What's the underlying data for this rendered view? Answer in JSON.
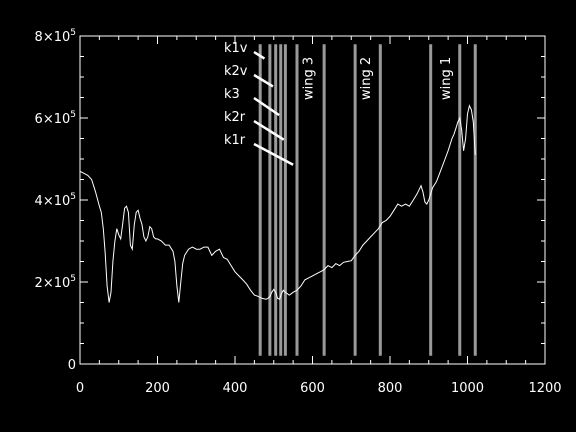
{
  "chart_data": {
    "type": "line",
    "title": "",
    "xlabel": "",
    "ylabel": "",
    "xlim": [
      0,
      1200
    ],
    "ylim": [
      0,
      800000
    ],
    "grid": false,
    "colors": {
      "background": "#000000",
      "axes": "#ffffff",
      "spectrum": "#ffffff",
      "bands": "#9a9a9a"
    },
    "x_ticks": [
      {
        "value": 0,
        "label": "0"
      },
      {
        "value": 200,
        "label": "200"
      },
      {
        "value": 400,
        "label": "400"
      },
      {
        "value": 600,
        "label": "600"
      },
      {
        "value": 800,
        "label": "800"
      },
      {
        "value": 1000,
        "label": "1000"
      },
      {
        "value": 1200,
        "label": "1200"
      }
    ],
    "y_ticks": [
      {
        "value": 0,
        "mantissa": "0",
        "exponent": ""
      },
      {
        "value": 200000,
        "mantissa": "2×10",
        "exponent": "5"
      },
      {
        "value": 400000,
        "mantissa": "4×10",
        "exponent": "5"
      },
      {
        "value": 600000,
        "mantissa": "6×10",
        "exponent": "5"
      },
      {
        "value": 800000,
        "mantissa": "8×10",
        "exponent": "5"
      }
    ],
    "series": [
      {
        "x": [
          0,
          10,
          20,
          30,
          40,
          50,
          55,
          60,
          65,
          70,
          75,
          80,
          85,
          90,
          95,
          100,
          105,
          110,
          115,
          120,
          125,
          130,
          135,
          140,
          145,
          150,
          155,
          160,
          165,
          170,
          175,
          180,
          185,
          190,
          195,
          200,
          210,
          220,
          230,
          240,
          245,
          250,
          255,
          260,
          265,
          270,
          280,
          290,
          300,
          310,
          320,
          330,
          340,
          350,
          360,
          370,
          380,
          390,
          400,
          410,
          420,
          430,
          440,
          450,
          460,
          470,
          480,
          485,
          490,
          495,
          500,
          505,
          510,
          515,
          520,
          525,
          530,
          540,
          550,
          560,
          570,
          580,
          590,
          600,
          610,
          620,
          630,
          640,
          650,
          660,
          670,
          680,
          690,
          700,
          710,
          720,
          730,
          740,
          750,
          760,
          770,
          780,
          790,
          800,
          810,
          820,
          830,
          840,
          850,
          860,
          870,
          880,
          885,
          890,
          895,
          900,
          910,
          920,
          930,
          940,
          950,
          960,
          965,
          970,
          975,
          980,
          985,
          990,
          995,
          1000,
          1005,
          1010,
          1015,
          1020
        ],
        "y": [
          470000,
          465000,
          460000,
          450000,
          420000,
          385000,
          370000,
          330000,
          270000,
          190000,
          150000,
          175000,
          250000,
          300000,
          330000,
          315000,
          305000,
          340000,
          380000,
          385000,
          370000,
          290000,
          280000,
          340000,
          370000,
          375000,
          355000,
          340000,
          310000,
          300000,
          310000,
          335000,
          330000,
          310000,
          305000,
          305000,
          300000,
          290000,
          290000,
          275000,
          250000,
          190000,
          150000,
          200000,
          245000,
          265000,
          280000,
          285000,
          280000,
          280000,
          285000,
          285000,
          265000,
          275000,
          280000,
          260000,
          255000,
          240000,
          225000,
          215000,
          205000,
          195000,
          180000,
          168000,
          165000,
          160000,
          158000,
          160000,
          165000,
          175000,
          182000,
          175000,
          160000,
          158000,
          172000,
          180000,
          175000,
          168000,
          175000,
          180000,
          190000,
          205000,
          210000,
          215000,
          220000,
          225000,
          230000,
          240000,
          235000,
          245000,
          240000,
          248000,
          250000,
          252000,
          265000,
          275000,
          290000,
          300000,
          310000,
          320000,
          330000,
          345000,
          350000,
          360000,
          375000,
          390000,
          385000,
          390000,
          385000,
          400000,
          415000,
          435000,
          420000,
          395000,
          390000,
          400000,
          430000,
          445000,
          470000,
          495000,
          520000,
          550000,
          560000,
          575000,
          590000,
          600000,
          570000,
          520000,
          550000,
          610000,
          630000,
          620000,
          590000,
          510000
        ]
      }
    ],
    "vertical_lines": [
      465,
      490,
      505,
      518,
      530,
      560,
      630,
      710,
      775,
      905,
      980,
      1020
    ],
    "annotations": [
      {
        "label": "k1v",
        "to_x": 476,
        "to_y": 745000
      },
      {
        "label": "k2v",
        "to_x": 498,
        "to_y": 677000
      },
      {
        "label": "k3",
        "to_x": 514,
        "to_y": 607000
      },
      {
        "label": "k2r",
        "to_x": 526,
        "to_y": 547000
      },
      {
        "label": "k1r",
        "to_x": 550,
        "to_y": 486000
      }
    ],
    "band_labels": [
      {
        "label": "wing 3",
        "x": 600
      },
      {
        "label": "wing 2",
        "x": 748
      },
      {
        "label": "wing 1",
        "x": 955
      }
    ]
  }
}
